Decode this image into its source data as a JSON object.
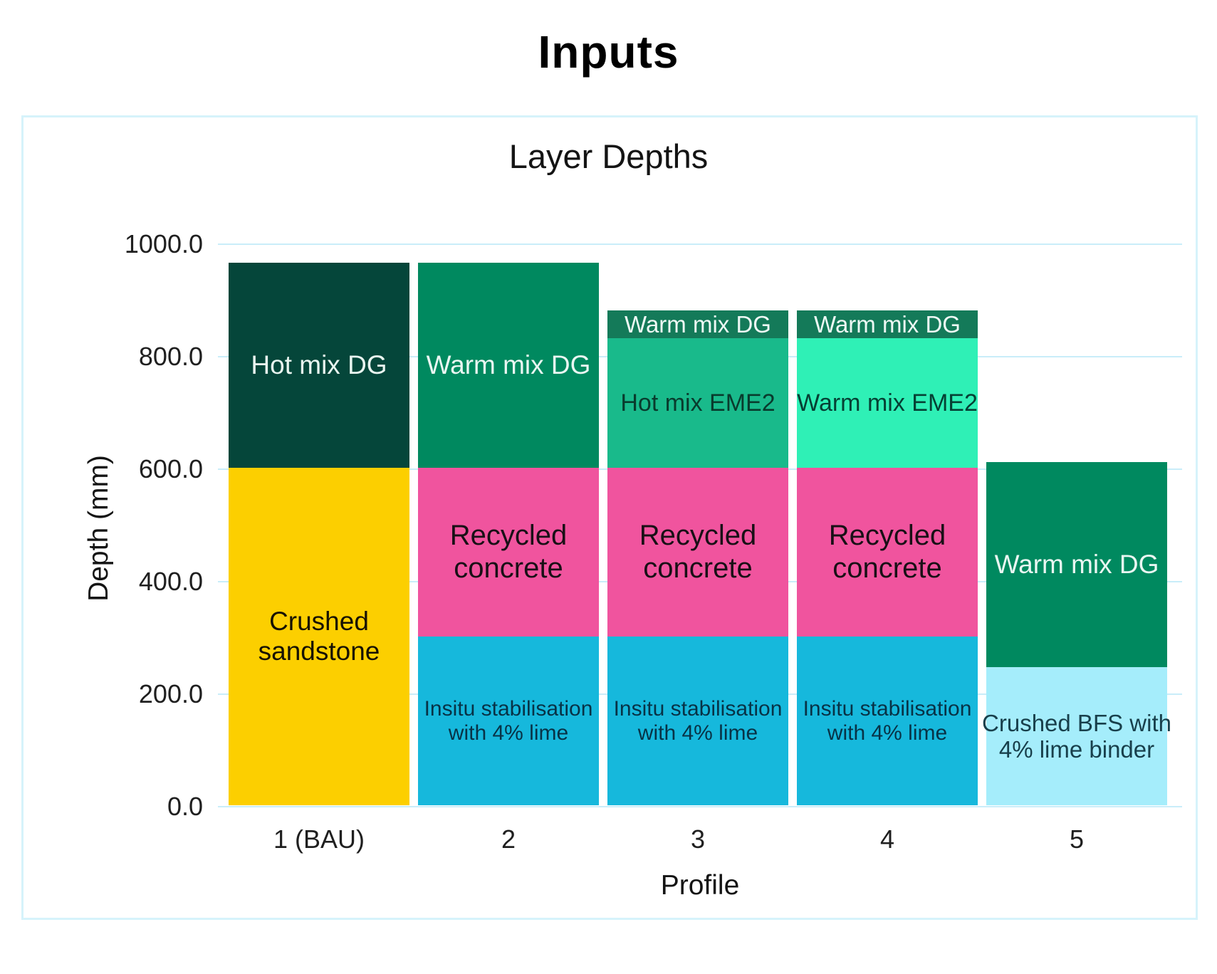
{
  "page_title": "Inputs",
  "axes": {
    "y_label": "Depth (mm)",
    "x_label": "Profile"
  },
  "chart_data": {
    "type": "bar",
    "stacked": true,
    "title": "Layer Depths",
    "xlabel": "Profile",
    "ylabel": "Depth (mm)",
    "ylim": [
      0,
      1000
    ],
    "ytick_interval": 200,
    "ytick_labels": [
      "0.0",
      "200.0",
      "400.0",
      "600.0",
      "800.0",
      "1000.0"
    ],
    "grid": true,
    "legend": "none",
    "categories": [
      "1 (BAU)",
      "2",
      "3",
      "4",
      "5"
    ],
    "units": "mm",
    "bars": [
      {
        "category": "1 (BAU)",
        "total_depth_mm": 965,
        "layers": [
          {
            "name": "Crushed sandstone",
            "lines": [
              "Crushed",
              "sandstone"
            ],
            "thickness_mm": 600,
            "color": "#fccf00",
            "text_color": "#171204",
            "font_size": 37
          },
          {
            "name": "Hot mix DG",
            "lines": [
              "Hot mix DG"
            ],
            "thickness_mm": 365,
            "color": "#05463a",
            "text_color": "#e9f5f0",
            "font_size": 37
          }
        ]
      },
      {
        "category": "2",
        "total_depth_mm": 965,
        "layers": [
          {
            "name": "Insitu stabilisation with 4% lime",
            "lines": [
              "Insitu stabilisation",
              "with 4% lime"
            ],
            "thickness_mm": 300,
            "color": "#16b8dc",
            "text_color": "#083246",
            "font_size": 30
          },
          {
            "name": "Recycled concrete",
            "lines": [
              "Recycled",
              "concrete"
            ],
            "thickness_mm": 300,
            "color": "#f0549e",
            "text_color": "#191016",
            "font_size": 40
          },
          {
            "name": "Warm mix DG",
            "lines": [
              "Warm mix DG"
            ],
            "thickness_mm": 365,
            "color": "#00895f",
            "text_color": "#eaf6f2",
            "font_size": 37
          }
        ]
      },
      {
        "category": "3",
        "total_depth_mm": 880,
        "layers": [
          {
            "name": "Insitu stabilisation with 4% lime",
            "lines": [
              "Insitu stabilisation",
              "with 4% lime"
            ],
            "thickness_mm": 300,
            "color": "#16b8dc",
            "text_color": "#083246",
            "font_size": 30
          },
          {
            "name": "Recycled concrete",
            "lines": [
              "Recycled",
              "concrete"
            ],
            "thickness_mm": 300,
            "color": "#f0549e",
            "text_color": "#191016",
            "font_size": 40
          },
          {
            "name": "Hot mix EME2",
            "lines": [
              "Hot mix EME2"
            ],
            "thickness_mm": 230,
            "color": "#19ba8b",
            "text_color": "#093b2d",
            "font_size": 34
          },
          {
            "name": "Warm mix DG",
            "lines": [
              "Warm mix DG"
            ],
            "thickness_mm": 50,
            "color": "#147a59",
            "text_color": "#edf8f4",
            "font_size": 33
          }
        ]
      },
      {
        "category": "4",
        "total_depth_mm": 880,
        "layers": [
          {
            "name": "Insitu stabilisation with 4% lime",
            "lines": [
              "Insitu stabilisation",
              "with 4% lime"
            ],
            "thickness_mm": 300,
            "color": "#16b8dc",
            "text_color": "#083246",
            "font_size": 30
          },
          {
            "name": "Recycled concrete",
            "lines": [
              "Recycled",
              "concrete"
            ],
            "thickness_mm": 300,
            "color": "#f0549e",
            "text_color": "#191016",
            "font_size": 40
          },
          {
            "name": "Warm mix EME2",
            "lines": [
              "Warm mix EME2"
            ],
            "thickness_mm": 230,
            "color": "#2ff0b6",
            "text_color": "#064034",
            "font_size": 34
          },
          {
            "name": "Warm mix DG",
            "lines": [
              "Warm mix DG"
            ],
            "thickness_mm": 50,
            "color": "#147a59",
            "text_color": "#edf8f4",
            "font_size": 33
          }
        ]
      },
      {
        "category": "5",
        "total_depth_mm": 610,
        "layers": [
          {
            "name": "Crushed BFS with 4% lime binder",
            "lines": [
              "Crushed BFS with",
              "4% lime binder"
            ],
            "thickness_mm": 245,
            "color": "#a5edfb",
            "text_color": "#183f4b",
            "font_size": 33
          },
          {
            "name": "Warm mix DG",
            "lines": [
              "Warm mix DG"
            ],
            "thickness_mm": 365,
            "color": "#00895f",
            "text_color": "#eaf6f2",
            "font_size": 37
          }
        ]
      }
    ]
  },
  "style_colors": {
    "panel_border": "#d6f3fb",
    "gridline": "#c9edf9",
    "title": "#000000"
  }
}
